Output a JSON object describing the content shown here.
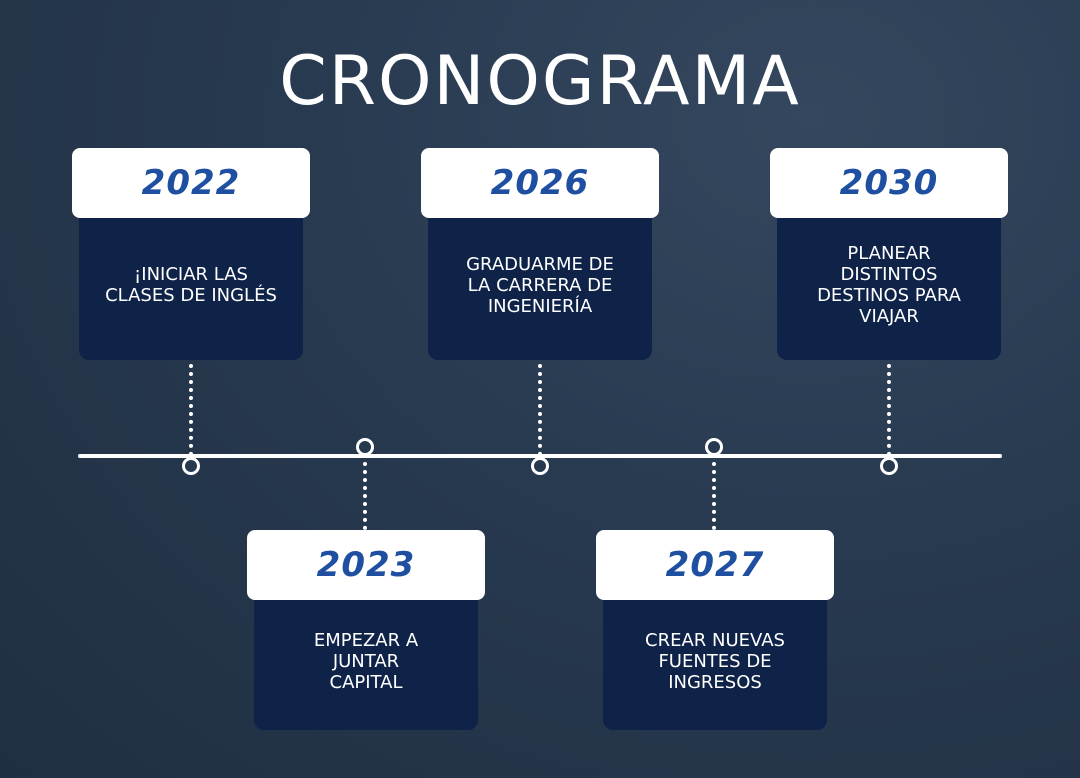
{
  "title": "CRONOGRAMA",
  "milestones": [
    {
      "year": "2022",
      "description": "¡INICIAR LAS CLASES DE INGLÉS"
    },
    {
      "year": "2023",
      "description": "EMPEZAR A JUNTAR CAPITAL"
    },
    {
      "year": "2026",
      "description": "GRADUARME DE LA CARRERA DE INGENIERÍA"
    },
    {
      "year": "2027",
      "description": "CREAR NUEVAS FUENTES DE INGRESOS"
    },
    {
      "year": "2030",
      "description": "PLANEAR DISTINTOS DESTINOS PARA VIAJAR"
    }
  ],
  "colors": {
    "background": "#283a50",
    "card_dark": "#0f2349",
    "year_text": "#1f4fa0",
    "line": "#ffffff"
  }
}
